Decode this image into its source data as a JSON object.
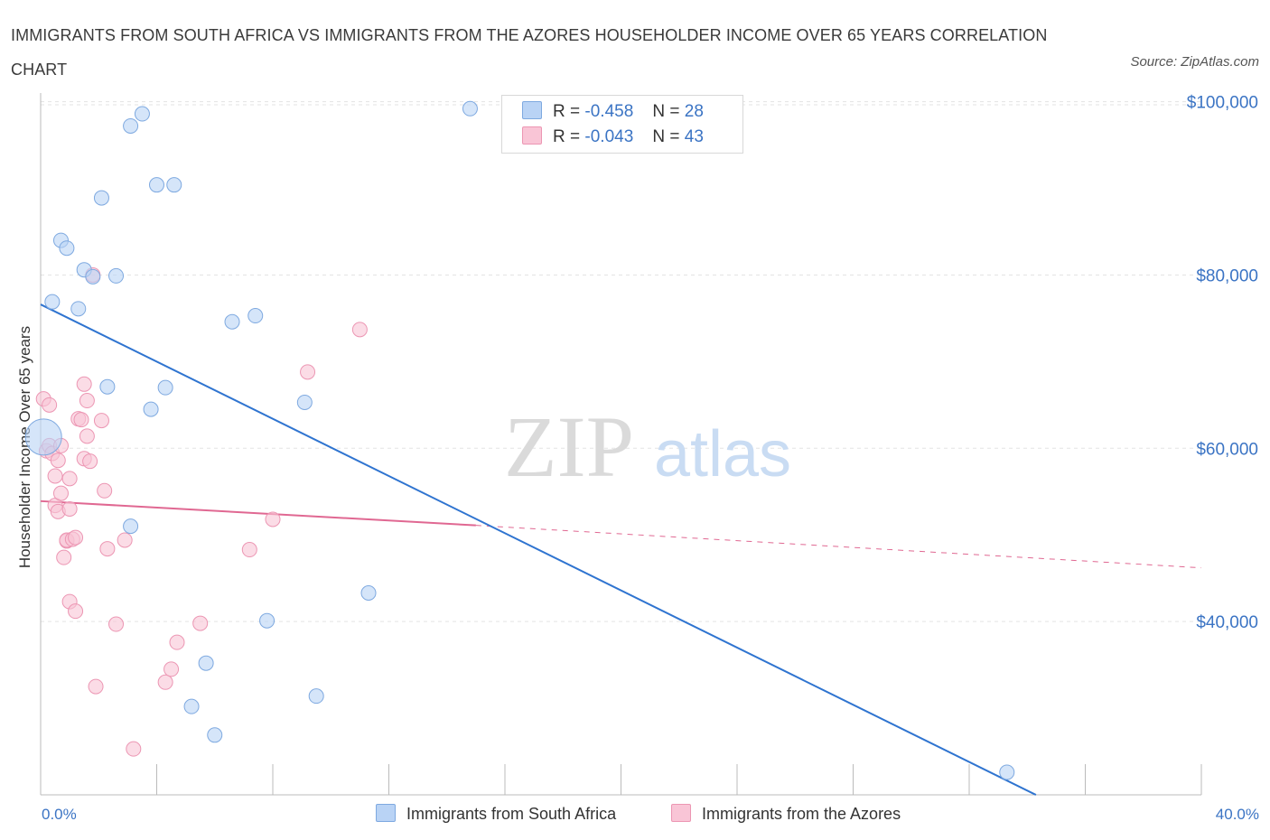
{
  "header": {
    "title": "IMMIGRANTS FROM SOUTH AFRICA VS IMMIGRANTS FROM THE AZORES HOUSEHOLDER INCOME OVER 65 YEARS CORRELATION CHART",
    "source": "Source: ZipAtlas.com"
  },
  "legend": {
    "rows": [
      {
        "r_label": "R =",
        "r_value": "-0.458",
        "n_label": "N =",
        "n_value": "28"
      },
      {
        "r_label": "R =",
        "r_value": "-0.043",
        "n_label": "N =",
        "n_value": "43"
      }
    ],
    "bottom": [
      "Immigrants from South Africa",
      "Immigrants from the Azores"
    ]
  },
  "watermark": {
    "zip": "ZIP",
    "atlas": "atlas"
  },
  "colors": {
    "blue_fill": "#b9d3f5",
    "blue_stroke": "#7ea9e0",
    "blue_line": "#2f74d0",
    "pink_fill": "#f9c5d6",
    "pink_stroke": "#ec96b3",
    "pink_line": "#e06892",
    "tick_label": "#3b74c4",
    "grid": "#e3e3e3"
  },
  "chart_data": {
    "type": "scatter",
    "title": "IMMIGRANTS FROM SOUTH AFRICA VS IMMIGRANTS FROM THE AZORES HOUSEHOLDER INCOME OVER 65 YEARS CORRELATION CHART",
    "xlabel": "",
    "ylabel": "Householder Income Over 65 years",
    "xlim": [
      0,
      40
    ],
    "ylim": [
      20000,
      101000
    ],
    "x_tick_labels": [
      "0.0%",
      "40.0%"
    ],
    "y_ticks": [
      40000,
      60000,
      80000,
      100000
    ],
    "y_tick_labels": [
      "$40,000",
      "$60,000",
      "$80,000",
      "$100,000"
    ],
    "grid": true,
    "legend_position": "top-center",
    "series": [
      {
        "name": "Immigrants from South Africa",
        "r": -0.458,
        "n": 28,
        "points": [
          [
            0.1,
            61300
          ],
          [
            0.4,
            76900
          ],
          [
            0.7,
            84000
          ],
          [
            0.9,
            83100
          ],
          [
            1.3,
            76100
          ],
          [
            1.5,
            80600
          ],
          [
            1.8,
            79800
          ],
          [
            2.1,
            88900
          ],
          [
            2.3,
            67100
          ],
          [
            2.6,
            79900
          ],
          [
            3.1,
            51000
          ],
          [
            3.1,
            97200
          ],
          [
            3.5,
            98600
          ],
          [
            3.8,
            64500
          ],
          [
            4.0,
            90400
          ],
          [
            4.3,
            67000
          ],
          [
            4.6,
            90400
          ],
          [
            5.2,
            30200
          ],
          [
            5.7,
            35200
          ],
          [
            6.0,
            26900
          ],
          [
            6.6,
            74600
          ],
          [
            7.4,
            75300
          ],
          [
            7.8,
            40100
          ],
          [
            9.1,
            65300
          ],
          [
            9.5,
            31400
          ],
          [
            11.3,
            43300
          ],
          [
            14.8,
            99200
          ],
          [
            33.3,
            22600
          ]
        ],
        "trend": {
          "x": [
            0,
            34.3
          ],
          "y": [
            76600,
            20000
          ]
        }
      },
      {
        "name": "Immigrants from the Azores",
        "r": -0.043,
        "n": 43,
        "points": [
          [
            0.1,
            65700
          ],
          [
            0.2,
            59700
          ],
          [
            0.3,
            60300
          ],
          [
            0.3,
            65000
          ],
          [
            0.4,
            59400
          ],
          [
            0.5,
            53400
          ],
          [
            0.5,
            56800
          ],
          [
            0.6,
            58600
          ],
          [
            0.6,
            52700
          ],
          [
            0.7,
            60300
          ],
          [
            0.7,
            54800
          ],
          [
            0.8,
            47400
          ],
          [
            0.9,
            49300
          ],
          [
            0.9,
            49400
          ],
          [
            1.0,
            53000
          ],
          [
            1.0,
            56500
          ],
          [
            1.1,
            49500
          ],
          [
            1.0,
            42300
          ],
          [
            1.2,
            49700
          ],
          [
            1.2,
            41200
          ],
          [
            1.3,
            63400
          ],
          [
            1.4,
            63300
          ],
          [
            1.5,
            58800
          ],
          [
            1.5,
            67400
          ],
          [
            1.6,
            65500
          ],
          [
            1.6,
            61400
          ],
          [
            1.7,
            58500
          ],
          [
            1.8,
            80000
          ],
          [
            1.9,
            32500
          ],
          [
            2.1,
            63200
          ],
          [
            2.2,
            55100
          ],
          [
            2.3,
            48400
          ],
          [
            2.6,
            39700
          ],
          [
            2.9,
            49400
          ],
          [
            3.2,
            25300
          ],
          [
            4.3,
            33000
          ],
          [
            4.5,
            34500
          ],
          [
            4.7,
            37600
          ],
          [
            5.5,
            39800
          ],
          [
            7.2,
            48300
          ],
          [
            8.0,
            51800
          ],
          [
            9.2,
            68800
          ],
          [
            11.0,
            73700
          ]
        ],
        "trend_solid": {
          "x": [
            0,
            15
          ],
          "y": [
            53900,
            51100
          ]
        },
        "trend_dashed": {
          "x": [
            15,
            40
          ],
          "y": [
            51100,
            46200
          ]
        }
      }
    ]
  }
}
